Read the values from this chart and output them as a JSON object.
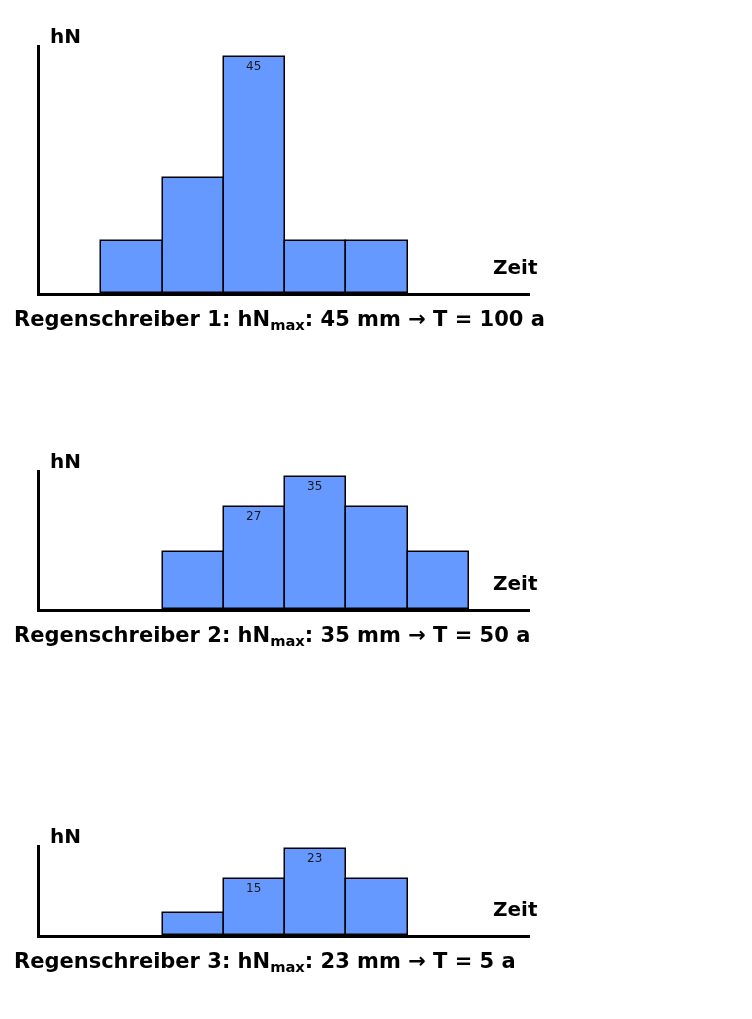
{
  "chart_data": [
    {
      "type": "bar",
      "xlabel": "Zeit",
      "ylabel": "hN",
      "categories": [
        null,
        null,
        null,
        null,
        null
      ],
      "color": "#6699ff",
      "values": [
        10,
        22,
        45,
        10,
        10
      ],
      "value_labels": [
        null,
        null,
        "45",
        null,
        null
      ],
      "annotations": [
        "Regenschreiber 1: hN$_{max}$: 45 mm → T = 100 a"
      ]
    },
    {
      "type": "bar",
      "xlabel": "Zeit",
      "ylabel": "hN",
      "categories": [
        null,
        null,
        null,
        null,
        null
      ],
      "color": "#6699ff",
      "values": [
        15,
        27,
        35,
        27,
        15
      ],
      "value_labels": [
        null,
        "27",
        "35",
        null,
        null
      ],
      "annotations": [
        "Regenschreiber 2: hN$_{max}$: 35 mm → T = 50 a"
      ]
    },
    {
      "type": "bar",
      "xlabel": "Zeit",
      "ylabel": "hN",
      "categories": [
        null,
        null,
        null,
        null
      ],
      "color": "#6699ff",
      "values": [
        6,
        15,
        23,
        15
      ],
      "value_labels": [
        null,
        "15",
        "23",
        null
      ],
      "annotations": [
        "Regenschreiber 3: hN$_{max}$: 23 mm → T = 5 a"
      ]
    }
  ]
}
